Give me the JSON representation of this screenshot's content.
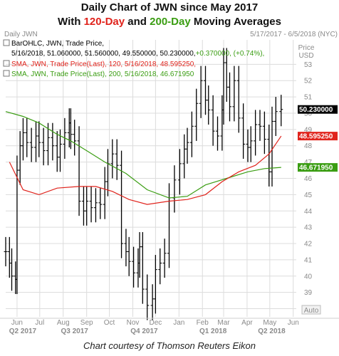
{
  "header": {
    "title": "Daily Chart of JWN since May 2017",
    "subtitle_prefix": "With ",
    "sma120_text": "120-Day",
    "subtitle_mid": " and ",
    "sma200_text": "200-Day",
    "subtitle_suffix": " Moving Averages"
  },
  "chart_meta": {
    "name": "Daily JWN",
    "date_range": "5/17/2017 - 6/5/2018 (NYC)",
    "price_label": "Price",
    "currency_label": "USD",
    "auto_label": "Auto"
  },
  "legend": {
    "ohlc_line1": "BarOHLC, JWN, Trade Price,",
    "ohlc_line2_prefix": "5/16/2018, 51.060000, 51.560000, 49.550000, 50.230000,",
    "ohlc_change": "+0.370000, (+0.74%),",
    "sma120": "SMA, JWN, Trade Price(Last),  120,  5/16/2018,  48.595250,",
    "sma200": "SMA, JWN, Trade Price(Last),  200,  5/16/2018,  46.671950"
  },
  "price_tags": {
    "last": "50.230000",
    "sma120": "48.595250",
    "sma200": "46.671950"
  },
  "credit": "Chart courtesy of Thomson Reuters Eikon",
  "colors": {
    "price": "#000000",
    "sma120": "#e0231c",
    "sma200": "#3a9d12",
    "grid": "#dcdcdc",
    "axis_text": "#8a8a8a",
    "last_tag": "#000000"
  },
  "chart_data": {
    "type": "bar",
    "title": "Daily Chart of JWN since May 2017",
    "ylim": [
      37.5,
      54.5
    ],
    "yticks": [
      38,
      39,
      40,
      41,
      42,
      43,
      44,
      45,
      46,
      47,
      48,
      49,
      50,
      51,
      52,
      53
    ],
    "x_months": [
      "Jun",
      "Jul",
      "Aug",
      "Sep",
      "Oct",
      "Nov",
      "Dec",
      "Jan",
      "Feb",
      "Mar",
      "Apr",
      "May",
      "Jun"
    ],
    "x_quarters": [
      "Q2 2017",
      "Q3 2017",
      "Q4 2017",
      "Q1 2018",
      "Q2 2018"
    ],
    "grid": true,
    "price_series": {
      "name": "JWN",
      "dates": [
        "2017-05-17",
        "2017-05-22",
        "2017-05-25",
        "2017-05-30",
        "2017-06-01",
        "2017-06-05",
        "2017-06-09",
        "2017-06-14",
        "2017-06-20",
        "2017-06-26",
        "2017-06-30",
        "2017-07-06",
        "2017-07-12",
        "2017-07-18",
        "2017-07-24",
        "2017-07-28",
        "2017-08-03",
        "2017-08-09",
        "2017-08-11",
        "2017-08-16",
        "2017-08-22",
        "2017-08-28",
        "2017-09-01",
        "2017-09-07",
        "2017-09-13",
        "2017-09-19",
        "2017-09-25",
        "2017-09-29",
        "2017-10-05",
        "2017-10-11",
        "2017-10-17",
        "2017-10-23",
        "2017-10-27",
        "2017-11-02",
        "2017-11-08",
        "2017-11-10",
        "2017-11-14",
        "2017-11-20",
        "2017-11-27",
        "2017-12-01",
        "2017-12-07",
        "2017-12-13",
        "2017-12-19",
        "2017-12-26",
        "2018-01-02",
        "2018-01-08",
        "2018-01-12",
        "2018-01-18",
        "2018-01-24",
        "2018-01-30",
        "2018-02-05",
        "2018-02-09",
        "2018-02-15",
        "2018-02-21",
        "2018-02-27",
        "2018-03-01",
        "2018-03-05",
        "2018-03-09",
        "2018-03-15",
        "2018-03-21",
        "2018-03-27",
        "2018-04-02",
        "2018-04-06",
        "2018-04-12",
        "2018-04-18",
        "2018-04-24",
        "2018-04-30",
        "2018-05-04",
        "2018-05-09",
        "2018-05-16"
      ],
      "close": [
        41.5,
        40.8,
        40.0,
        39.8,
        46.5,
        48.0,
        48.8,
        48.2,
        47.9,
        48.6,
        48.2,
        47.7,
        48.5,
        48.0,
        47.3,
        48.1,
        48.8,
        49.4,
        48.7,
        48.3,
        44.6,
        44.0,
        44.6,
        44.2,
        44.5,
        44.4,
        45.8,
        46.9,
        47.5,
        46.8,
        42.0,
        41.5,
        40.9,
        40.2,
        40.8,
        41.8,
        39.2,
        38.2,
        38.6,
        40.4,
        40.8,
        41.4,
        44.8,
        45.9,
        46.9,
        47.8,
        48.2,
        49.2,
        50.6,
        52.0,
        50.8,
        50.2,
        48.9,
        48.6,
        50.2,
        53.1,
        51.6,
        50.4,
        52.0,
        49.7,
        48.1,
        47.9,
        48.3,
        49.3,
        49.2,
        48.4,
        46.4,
        49.5,
        50.1,
        50.23
      ]
    },
    "sma120_series": {
      "name": "SMA 120",
      "dates": [
        "2017-05-22",
        "2017-06-09",
        "2017-06-30",
        "2017-07-24",
        "2017-08-22",
        "2017-09-13",
        "2017-10-05",
        "2017-10-27",
        "2017-11-20",
        "2017-12-19",
        "2018-01-12",
        "2018-02-05",
        "2018-02-27",
        "2018-03-21",
        "2018-04-12",
        "2018-04-30",
        "2018-05-16"
      ],
      "values": [
        47.0,
        45.3,
        45.0,
        45.4,
        45.5,
        45.5,
        45.2,
        44.7,
        44.4,
        44.6,
        44.7,
        45.0,
        45.8,
        46.4,
        46.8,
        47.5,
        48.5952
      ]
    },
    "sma200_series": {
      "name": "SMA 200",
      "dates": [
        "2017-05-17",
        "2017-06-09",
        "2017-06-30",
        "2017-07-24",
        "2017-08-11",
        "2017-09-01",
        "2017-09-25",
        "2017-10-23",
        "2017-11-20",
        "2017-12-19",
        "2018-01-12",
        "2018-02-05",
        "2018-03-05",
        "2018-04-02",
        "2018-04-24",
        "2018-05-16"
      ],
      "values": [
        50.1,
        49.8,
        49.4,
        48.7,
        48.3,
        47.7,
        47.0,
        46.3,
        45.3,
        44.8,
        44.9,
        45.6,
        46.0,
        46.4,
        46.6,
        46.672
      ]
    }
  }
}
